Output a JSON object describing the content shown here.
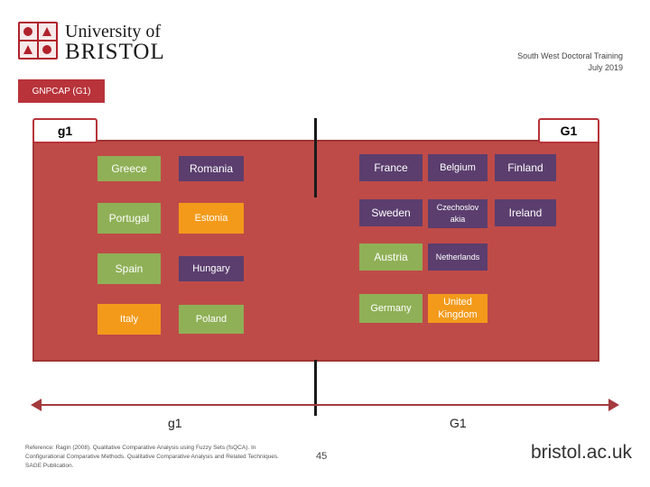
{
  "header": {
    "university_line1": "University of",
    "university_line2": "BRISTOL",
    "dtc_line1": "South West Doctoral Training",
    "dtc_line2": "July 2019",
    "section_tag": "GNPCAP (G1)"
  },
  "panel": {
    "left_label": "g1",
    "right_label": "G1",
    "left_cols": [
      [
        "Greece",
        "Portugal",
        "Spain",
        "Italy"
      ],
      [
        "Romania",
        "Estonia",
        "Hungary",
        "Poland"
      ]
    ],
    "right_cols": [
      [
        "France",
        "Sweden",
        "Austria",
        "Germany"
      ],
      [
        "Belgium",
        "Czechoslov akia",
        "Netherlands",
        "United Kingdom"
      ],
      [
        "Finland",
        "Ireland"
      ]
    ]
  },
  "axis": {
    "left_label": "g1",
    "right_label": "G1"
  },
  "footer": {
    "reference": "Reference: Ragin (2008). Qualitative Comparative Analysis using Fuzzy Sets (fsQCA). In Configurational Comparative Methods. Qualitative Comparative Analysis and Related Techniques. SAGE Publication.",
    "page_number": "45",
    "brand_url": "bristol.ac.uk"
  },
  "colors": {
    "panel": "#be4b48",
    "green": "#8fb056",
    "purple": "#5b3e6e",
    "orange": "#f39a1a",
    "brand_red": "#b0212b"
  }
}
